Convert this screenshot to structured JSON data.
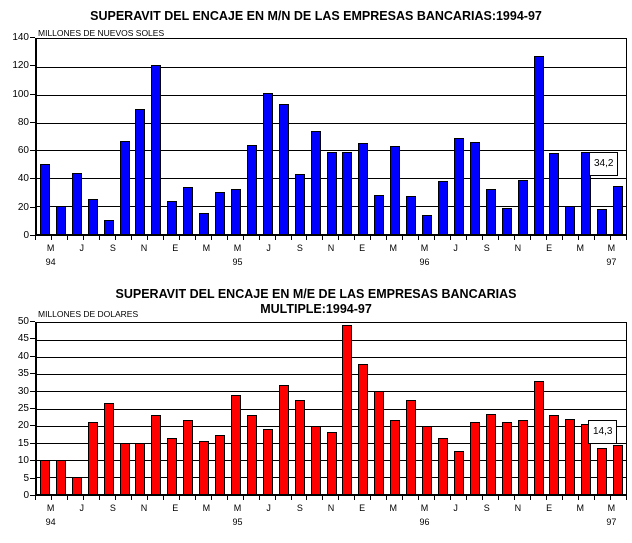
{
  "chart_data": [
    {
      "type": "bar",
      "title": "SUPERAVIT DEL ENCAJE EN M/N DE LAS EMPRESAS BANCARIAS:1994-97",
      "subtitle": "",
      "ylabel": "MILLONES DE NUEVOS SOLES",
      "xlabel": "",
      "ylim": [
        0,
        140
      ],
      "ytick_step": 20,
      "grid": true,
      "legend": "none",
      "bar_color": "#0000FF",
      "x_month_labels": [
        "M",
        "J",
        "S",
        "N",
        "E",
        "M",
        "M",
        "J",
        "S",
        "N",
        "E",
        "M",
        "M",
        "J",
        "S",
        "N",
        "E",
        "M",
        "M"
      ],
      "year_labels": [
        {
          "text": "94",
          "label_index": 0
        },
        {
          "text": "95",
          "label_index": 6
        },
        {
          "text": "96",
          "label_index": 12
        },
        {
          "text": "97",
          "label_index": 18
        }
      ],
      "months": [
        "May-94",
        "Jun-94",
        "Jul-94",
        "Ago-94",
        "Sep-94",
        "Oct-94",
        "Nov-94",
        "Dic-94",
        "Ene-95",
        "Feb-95",
        "Mar-95",
        "Abr-95",
        "May-95",
        "Jun-95",
        "Jul-95",
        "Ago-95",
        "Sep-95",
        "Oct-95",
        "Nov-95",
        "Dic-95",
        "Ene-96",
        "Feb-96",
        "Mar-96",
        "Abr-96",
        "May-96",
        "Jun-96",
        "Jul-96",
        "Ago-96",
        "Sep-96",
        "Oct-96",
        "Nov-96",
        "Dic-96",
        "Ene-97",
        "Feb-97",
        "Mar-97",
        "Abr-97",
        "May-97"
      ],
      "values": [
        50,
        20,
        44,
        25,
        10,
        67,
        90,
        121,
        24,
        34,
        15,
        30,
        32,
        64,
        101,
        93,
        43,
        74,
        59,
        59,
        65,
        28,
        63,
        27,
        14,
        38,
        69,
        66,
        32,
        19,
        39,
        128,
        58,
        20,
        59,
        18,
        34.2
      ],
      "last_value_label": "34,2"
    },
    {
      "type": "bar",
      "title": "SUPERAVIT DEL ENCAJE EN M/E DE LAS EMPRESAS BANCARIAS",
      "subtitle": "MULTIPLE:1994-97",
      "ylabel": "MILLONES DE DOLARES",
      "xlabel": "",
      "ylim": [
        0,
        50
      ],
      "ytick_step": 5,
      "grid": true,
      "legend": "none",
      "bar_color": "#FF0000",
      "x_month_labels": [
        "M",
        "J",
        "S",
        "N",
        "E",
        "M",
        "M",
        "J",
        "S",
        "N",
        "E",
        "M",
        "M",
        "J",
        "S",
        "N",
        "E",
        "M",
        "M"
      ],
      "year_labels": [
        {
          "text": "94",
          "label_index": 0
        },
        {
          "text": "95",
          "label_index": 6
        },
        {
          "text": "96",
          "label_index": 12
        },
        {
          "text": "97",
          "label_index": 18
        }
      ],
      "months": [
        "May-94",
        "Jun-94",
        "Jul-94",
        "Ago-94",
        "Sep-94",
        "Oct-94",
        "Nov-94",
        "Dic-94",
        "Ene-95",
        "Feb-95",
        "Mar-95",
        "Abr-95",
        "May-95",
        "Jun-95",
        "Jul-95",
        "Ago-95",
        "Sep-95",
        "Oct-95",
        "Nov-95",
        "Dic-95",
        "Ene-96",
        "Feb-96",
        "Mar-96",
        "Abr-96",
        "May-96",
        "Jun-96",
        "Jul-96",
        "Ago-96",
        "Sep-96",
        "Oct-96",
        "Nov-96",
        "Dic-96",
        "Ene-97",
        "Feb-97",
        "Mar-97",
        "Abr-97",
        "May-97"
      ],
      "values": [
        10,
        9.8,
        5,
        21,
        26.5,
        14.8,
        14.8,
        23,
        16.5,
        21.5,
        15.5,
        17.3,
        29,
        23,
        19,
        32,
        27.5,
        20,
        18,
        49.5,
        38,
        30,
        21.5,
        27.5,
        20,
        16.5,
        12.5,
        21,
        23.5,
        21,
        21.5,
        33,
        23,
        22,
        20.5,
        13.5,
        14.3
      ],
      "last_value_label": "14,3"
    }
  ]
}
